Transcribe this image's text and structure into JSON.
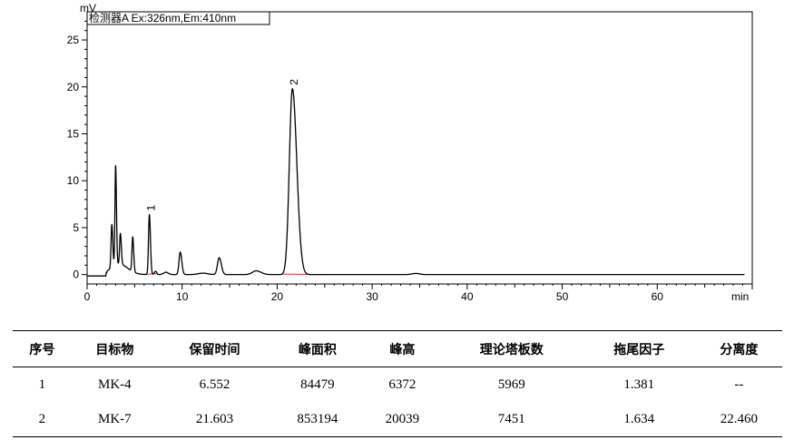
{
  "chart_data": {
    "type": "line",
    "title": "",
    "legend_box": "检测器A Ex:326nm,Em:410nm",
    "ylabel": "mV",
    "xlabel": "min",
    "xlim": [
      0,
      70
    ],
    "ylim": [
      -1,
      28
    ],
    "xticks": [
      0,
      10,
      20,
      30,
      40,
      50,
      60
    ],
    "yticks": [
      0,
      5,
      10,
      15,
      20,
      25
    ],
    "line_color": "#000000",
    "baseline_color": "#e03030",
    "peaks": [
      {
        "rt": 2.6,
        "height": 4.6,
        "width": 0.08,
        "label": ""
      },
      {
        "rt": 3.0,
        "height": 10.6,
        "width": 0.07,
        "label": ""
      },
      {
        "rt": 3.5,
        "height": 3.3,
        "width": 0.08,
        "label": ""
      },
      {
        "rt": 4.8,
        "height": 3.7,
        "width": 0.08,
        "label": ""
      },
      {
        "rt": 6.552,
        "height": 6.4,
        "width": 0.09,
        "label": "1"
      },
      {
        "rt": 9.8,
        "height": 2.4,
        "width": 0.13,
        "label": ""
      },
      {
        "rt": 13.9,
        "height": 1.8,
        "width": 0.18,
        "label": ""
      },
      {
        "rt": 17.8,
        "height": 0.4,
        "width": 0.4,
        "label": ""
      },
      {
        "rt": 21.603,
        "height": 19.8,
        "width": 0.32,
        "label": "2"
      }
    ],
    "baseline_segments": [
      [
        5.9,
        7.4
      ],
      [
        20.5,
        25.0
      ]
    ]
  },
  "table": {
    "headers": [
      "序号",
      "目标物",
      "保留时间",
      "峰面积",
      "峰高",
      "理论塔板数",
      "拖尾因子",
      "分离度"
    ],
    "rows": [
      [
        "1",
        "MK-4",
        "6.552",
        "84479",
        "6372",
        "5969",
        "1.381",
        "--"
      ],
      [
        "2",
        "MK-7",
        "21.603",
        "853194",
        "20039",
        "7451",
        "1.634",
        "22.460"
      ]
    ]
  }
}
